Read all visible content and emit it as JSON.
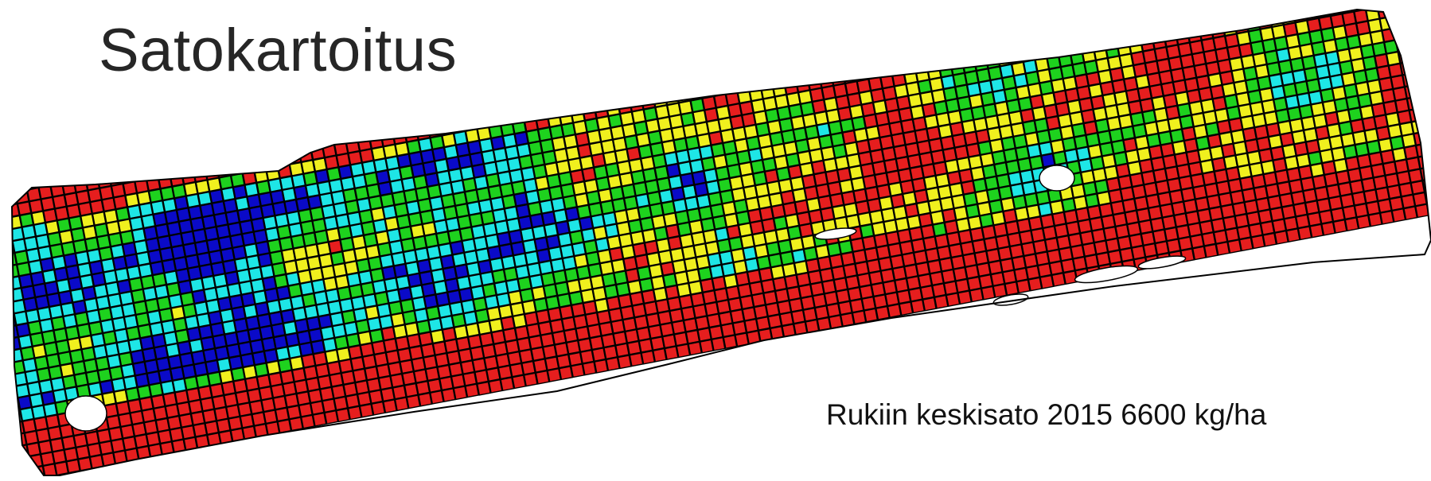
{
  "slide": {
    "title": "Satokartoitus",
    "caption": "Rukiin keskisato 2015 6600 kg/ha"
  },
  "map": {
    "kind": "yield-map",
    "colors": {
      "very_low": "#0a0ac8",
      "low": "#1ee6e6",
      "medium": "#1ed21e",
      "high": "#f0f01e",
      "very_high": "#e61e1e",
      "cell_outline": "#000000"
    }
  }
}
